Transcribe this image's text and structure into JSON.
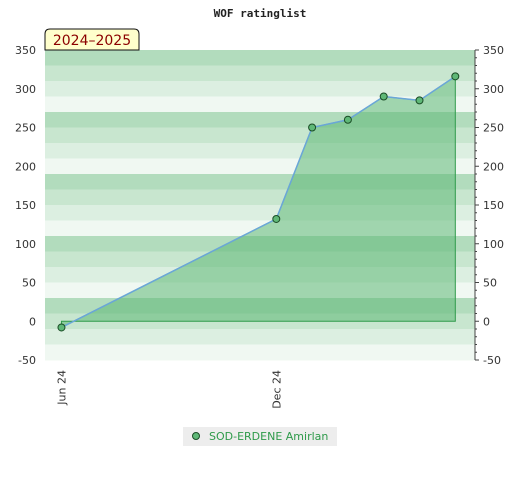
{
  "chart_data": {
    "type": "area",
    "title": "WOF ratinglist",
    "period_label": "2024–2025",
    "xlabel": "",
    "ylabel": "",
    "x_tick_labels": [
      "Jun 24",
      "Dec 24"
    ],
    "x_tick_positions": [
      0.0,
      6.0
    ],
    "ylim": [
      -50,
      350
    ],
    "y_ticks": [
      -50,
      0,
      50,
      100,
      150,
      200,
      250,
      300,
      350
    ],
    "right_axis": true,
    "grid": "horizontal bands",
    "legend_position": "bottom",
    "series": [
      {
        "name": "SOD-ERDENE Amirlan",
        "x": [
          0.0,
          6.0,
          7.0,
          8.0,
          9.0,
          10.0,
          11.0
        ],
        "y": [
          -8,
          132,
          250,
          260,
          290,
          285,
          316
        ],
        "color": "#2e9a4a",
        "fill": "#5fb877",
        "line_color": "#6aa6d8"
      }
    ]
  }
}
